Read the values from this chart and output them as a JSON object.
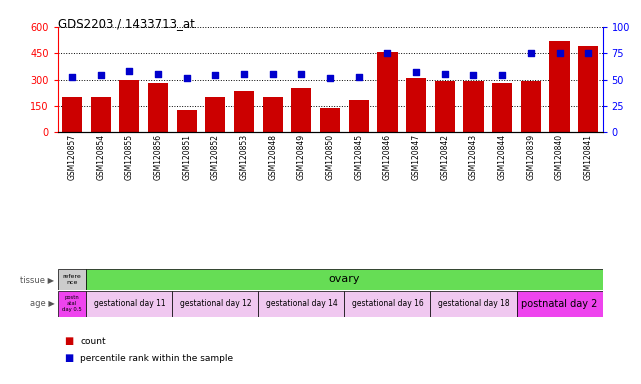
{
  "title": "GDS2203 / 1433713_at",
  "samples": [
    "GSM120857",
    "GSM120854",
    "GSM120855",
    "GSM120856",
    "GSM120851",
    "GSM120852",
    "GSM120853",
    "GSM120848",
    "GSM120849",
    "GSM120850",
    "GSM120845",
    "GSM120846",
    "GSM120847",
    "GSM120842",
    "GSM120843",
    "GSM120844",
    "GSM120839",
    "GSM120840",
    "GSM120841"
  ],
  "counts": [
    200,
    200,
    300,
    280,
    125,
    200,
    235,
    200,
    250,
    140,
    185,
    460,
    310,
    295,
    295,
    282,
    292,
    522,
    490
  ],
  "percentiles": [
    53,
    54,
    58,
    55,
    52,
    54,
    55,
    55,
    55,
    52,
    53,
    75,
    57,
    55,
    54,
    54,
    75,
    75,
    75
  ],
  "bar_color": "#cc0000",
  "dot_color": "#0000cc",
  "ylim_left": [
    0,
    600
  ],
  "ylim_right": [
    0,
    100
  ],
  "yticks_left": [
    0,
    150,
    300,
    450,
    600
  ],
  "yticks_right": [
    0,
    25,
    50,
    75,
    100
  ],
  "tissue_ref_label": "refere\nnce",
  "tissue_ref_color": "#cccccc",
  "tissue_label": "ovary",
  "tissue_color": "#66dd55",
  "age_ref_label": "postn\natal\nday 0.5",
  "age_ref_color": "#ee44ee",
  "age_groups": [
    {
      "label": "gestational day 11",
      "color": "#f0c8f0",
      "count": 3
    },
    {
      "label": "gestational day 12",
      "color": "#f0c8f0",
      "count": 3
    },
    {
      "label": "gestational day 14",
      "color": "#f0c8f0",
      "count": 3
    },
    {
      "label": "gestational day 16",
      "color": "#f0c8f0",
      "count": 3
    },
    {
      "label": "gestational day 18",
      "color": "#f0c8f0",
      "count": 3
    },
    {
      "label": "postnatal day 2",
      "color": "#ee44ee",
      "count": 3
    }
  ],
  "legend_count_color": "#cc0000",
  "legend_pct_color": "#0000cc"
}
